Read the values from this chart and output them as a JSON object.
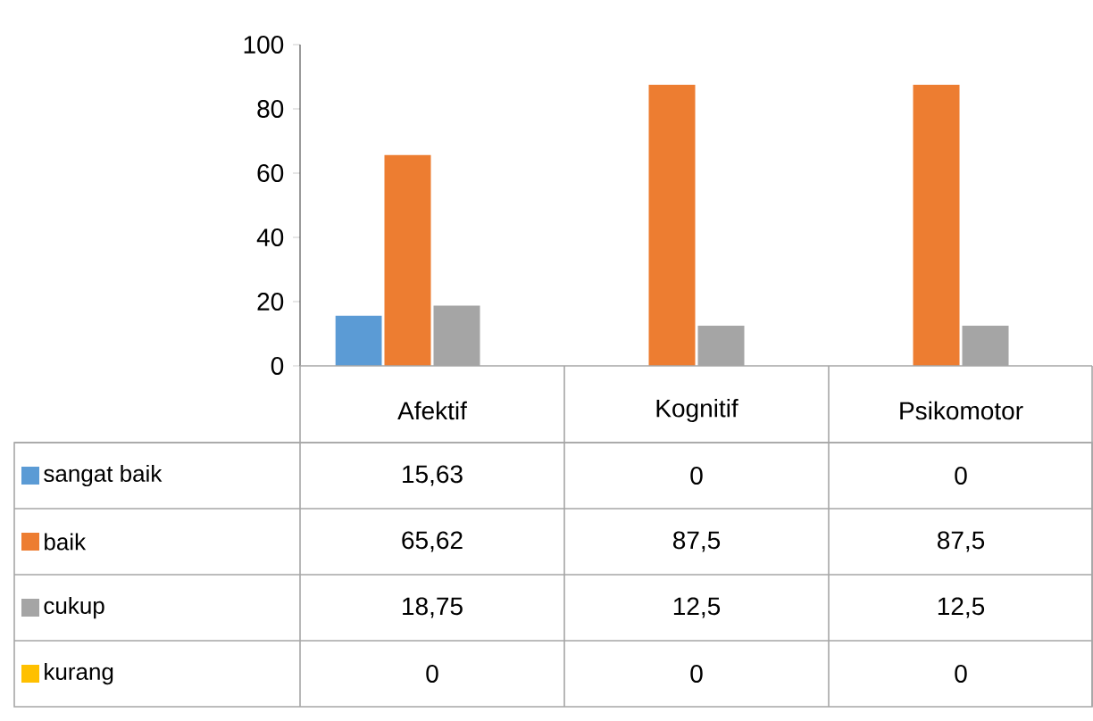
{
  "chart_data": {
    "type": "bar",
    "categories": [
      "Afektif",
      "Kognitif",
      "Psikomotor"
    ],
    "series": [
      {
        "name": "sangat baik",
        "color": "#5b9bd5",
        "values": [
          15.63,
          0,
          0
        ],
        "value_labels": [
          "15,63",
          "0",
          "0"
        ]
      },
      {
        "name": "baik",
        "color": "#ed7d31",
        "values": [
          65.62,
          87.5,
          87.5
        ],
        "value_labels": [
          "65,62",
          "87,5",
          "87,5"
        ]
      },
      {
        "name": "cukup",
        "color": "#a5a5a5",
        "values": [
          18.75,
          12.5,
          12.5
        ],
        "value_labels": [
          "18,75",
          "12,5",
          "12,5"
        ]
      },
      {
        "name": "kurang",
        "color": "#ffc000",
        "values": [
          0,
          0,
          0
        ],
        "value_labels": [
          "0",
          "0",
          "0"
        ]
      }
    ],
    "legend": "bottom left",
    "ylim": [
      0,
      100
    ],
    "yticks": [
      0,
      20,
      40,
      60,
      80,
      100
    ]
  }
}
